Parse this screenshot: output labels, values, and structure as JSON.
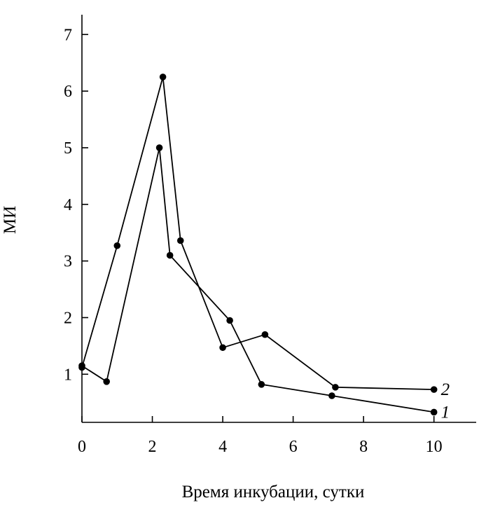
{
  "chart_data": {
    "type": "line",
    "title": "",
    "xlabel": "Время инкубации, сутки",
    "ylabel": "МИ",
    "xlim": [
      0,
      11.2
    ],
    "ylim": [
      0.15,
      7.3
    ],
    "x_ticks": [
      0,
      2,
      4,
      6,
      8,
      10
    ],
    "x_tick_labels": [
      "0",
      "2",
      "4",
      "6",
      "8",
      "10"
    ],
    "y_ticks": [
      1,
      2,
      3,
      4,
      5,
      6,
      7
    ],
    "y_tick_labels": [
      "1",
      "2",
      "3",
      "4",
      "5",
      "6",
      "7"
    ],
    "grid": false,
    "legend": "inline labels at line ends",
    "series": [
      {
        "name": "1",
        "x": [
          0,
          0.7,
          2.2,
          2.5,
          4.2,
          5.1,
          7.1,
          10
        ],
        "y": [
          1.15,
          0.87,
          5.0,
          3.1,
          1.95,
          0.82,
          0.62,
          0.33
        ]
      },
      {
        "name": "2",
        "x": [
          0,
          1.0,
          2.3,
          2.8,
          4.0,
          5.2,
          7.2,
          10
        ],
        "y": [
          1.12,
          3.27,
          6.25,
          3.36,
          1.47,
          1.7,
          0.77,
          0.73
        ]
      }
    ]
  }
}
